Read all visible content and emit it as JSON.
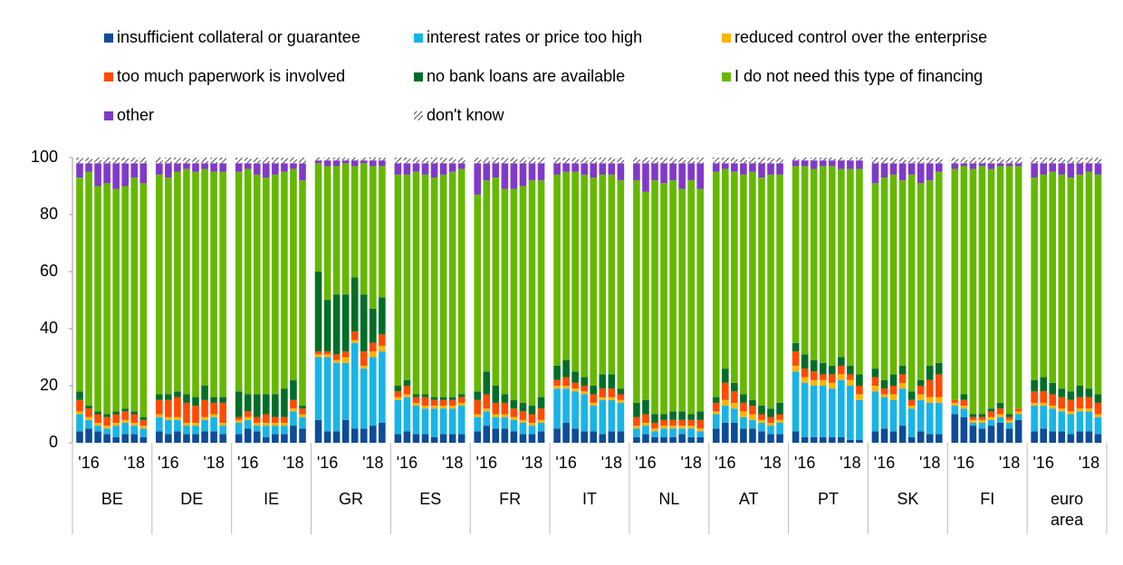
{
  "chart_data": {
    "type": "stacked_bar",
    "groups": [
      "BE",
      "DE",
      "IE",
      "GR",
      "ES",
      "FR",
      "IT",
      "NL",
      "AT",
      "PT",
      "SK",
      "FI",
      "euro area"
    ],
    "categories": [
      null,
      "'16",
      null,
      null,
      null,
      null,
      "'18",
      null,
      null,
      "'16",
      null,
      null,
      null,
      null,
      "'18",
      null,
      null,
      "'16",
      null,
      null,
      null,
      null,
      "'18",
      null,
      null,
      "'16",
      null,
      null,
      null,
      null,
      "'18",
      null,
      null,
      "'16",
      null,
      null,
      null,
      null,
      "'18",
      null,
      null,
      "'16",
      null,
      null,
      null,
      null,
      "'18",
      null,
      null,
      "'16",
      null,
      null,
      null,
      null,
      "'18",
      null,
      null,
      "'16",
      null,
      null,
      null,
      null,
      "'18",
      null,
      null,
      "'16",
      null,
      null,
      null,
      null,
      "'18",
      null,
      null,
      "'16",
      null,
      null,
      null,
      null,
      "'18",
      null,
      null,
      "'16",
      null,
      null,
      null,
      null,
      "'18",
      null,
      null,
      "'16",
      null,
      null,
      null,
      null,
      "'18",
      null,
      null,
      "'16",
      null,
      null,
      null,
      null,
      "'18",
      null
    ],
    "series": [
      {
        "name": "insufficient collateral or guarantee",
        "color": "#0e4c96",
        "values": [
          4,
          5,
          4,
          3,
          2,
          3,
          3,
          2,
          4,
          3,
          4,
          3,
          3,
          4,
          4,
          3,
          3,
          5,
          4,
          2,
          3,
          3,
          6,
          5,
          8,
          4,
          4,
          8,
          5,
          5,
          6,
          7,
          3,
          4,
          3,
          3,
          2,
          3,
          3,
          3,
          4,
          6,
          5,
          5,
          4,
          3,
          3,
          4,
          5,
          7,
          5,
          4,
          4,
          3,
          4,
          4,
          2,
          3,
          2,
          2,
          2,
          3,
          2,
          2,
          5,
          7,
          7,
          5,
          5,
          4,
          3,
          3,
          4,
          2,
          2,
          2,
          2,
          2,
          1,
          1,
          4,
          5,
          4,
          6,
          2,
          4,
          3,
          3,
          10,
          9,
          6,
          5,
          6,
          7,
          5,
          8,
          4,
          5,
          4,
          4,
          3,
          4,
          4,
          3
        ]
      },
      {
        "name": "interest rates or price too high",
        "color": "#19b4e6",
        "values": [
          6,
          3,
          2,
          2,
          4,
          4,
          3,
          3,
          5,
          5,
          4,
          3,
          3,
          4,
          5,
          3,
          4,
          3,
          2,
          4,
          3,
          3,
          5,
          4,
          22,
          26,
          24,
          20,
          30,
          21,
          24,
          25,
          12,
          12,
          10,
          9,
          10,
          9,
          9,
          10,
          5,
          5,
          4,
          4,
          4,
          4,
          3,
          3,
          14,
          12,
          13,
          13,
          9,
          12,
          11,
          10,
          3,
          3,
          2,
          3,
          3,
          2,
          3,
          2,
          5,
          6,
          5,
          4,
          3,
          3,
          3,
          4,
          21,
          19,
          18,
          18,
          17,
          20,
          19,
          14,
          14,
          11,
          11,
          13,
          10,
          11,
          11,
          11,
          3,
          3,
          1,
          2,
          2,
          2,
          2,
          2,
          9,
          8,
          8,
          7,
          7,
          7,
          7,
          6
        ]
      },
      {
        "name": "reduced control over the enterprise",
        "color": "#ffb400",
        "values": [
          1,
          1,
          1,
          1,
          1,
          1,
          1,
          1,
          1,
          1,
          1,
          1,
          1,
          1,
          1,
          1,
          1,
          1,
          1,
          1,
          1,
          1,
          1,
          1,
          1,
          1,
          1,
          2,
          1,
          1,
          2,
          2,
          1,
          1,
          1,
          1,
          1,
          1,
          1,
          1,
          1,
          1,
          1,
          1,
          1,
          1,
          1,
          1,
          1,
          1,
          1,
          1,
          1,
          1,
          1,
          1,
          1,
          1,
          1,
          1,
          1,
          1,
          1,
          1,
          1,
          2,
          2,
          2,
          2,
          1,
          1,
          1,
          2,
          2,
          2,
          2,
          2,
          2,
          2,
          2,
          2,
          1,
          2,
          2,
          1,
          2,
          2,
          2,
          1,
          1,
          1,
          1,
          1,
          1,
          1,
          1,
          1,
          1,
          1,
          1,
          1,
          1,
          1,
          1
        ]
      },
      {
        "name": "too much paperwork is involved",
        "color": "#ff4b00",
        "values": [
          4,
          3,
          3,
          3,
          3,
          3,
          3,
          2,
          5,
          6,
          7,
          7,
          6,
          6,
          4,
          7,
          1,
          2,
          2,
          3,
          2,
          2,
          3,
          2,
          1,
          1,
          2,
          2,
          3,
          5,
          3,
          4,
          2,
          3,
          2,
          3,
          2,
          2,
          2,
          2,
          5,
          5,
          4,
          4,
          3,
          3,
          3,
          4,
          2,
          3,
          2,
          2,
          3,
          3,
          3,
          2,
          3,
          3,
          2,
          2,
          2,
          2,
          2,
          3,
          3,
          6,
          4,
          3,
          3,
          2,
          2,
          2,
          5,
          3,
          3,
          2,
          3,
          3,
          2,
          3,
          3,
          2,
          3,
          3,
          2,
          3,
          6,
          8,
          1,
          2,
          1,
          1,
          2,
          2,
          1,
          1,
          4,
          4,
          4,
          4,
          4,
          4,
          4,
          4
        ]
      },
      {
        "name": "no bank loans are available",
        "color": "#006e28",
        "values": [
          3,
          1,
          1,
          1,
          1,
          1,
          1,
          1,
          2,
          2,
          2,
          3,
          3,
          5,
          2,
          2,
          9,
          6,
          8,
          7,
          8,
          10,
          7,
          1,
          28,
          18,
          21,
          20,
          19,
          20,
          12,
          13,
          2,
          2,
          1,
          1,
          1,
          1,
          1,
          1,
          3,
          8,
          6,
          3,
          3,
          3,
          3,
          4,
          5,
          6,
          4,
          3,
          3,
          5,
          5,
          2,
          5,
          5,
          3,
          2,
          3,
          3,
          2,
          3,
          2,
          5,
          3,
          3,
          2,
          3,
          3,
          4,
          3,
          5,
          4,
          4,
          3,
          3,
          3,
          4,
          3,
          3,
          4,
          3,
          3,
          2,
          5,
          4,
          0,
          2,
          1,
          1,
          1,
          2,
          1,
          0,
          4,
          5,
          4,
          3,
          3,
          4,
          3,
          3
        ]
      },
      {
        "name": "I do not need this type of financing",
        "color": "#65b800",
        "values": [
          75,
          82,
          79,
          81,
          78,
          78,
          82,
          82,
          77,
          76,
          77,
          79,
          79,
          76,
          79,
          79,
          77,
          79,
          77,
          76,
          77,
          76,
          74,
          79,
          38,
          47,
          45,
          46,
          39,
          46,
          50,
          46,
          74,
          72,
          78,
          77,
          77,
          78,
          79,
          79,
          69,
          67,
          73,
          72,
          74,
          76,
          79,
          76,
          67,
          66,
          70,
          71,
          73,
          70,
          70,
          73,
          78,
          73,
          82,
          81,
          81,
          78,
          82,
          78,
          79,
          70,
          74,
          77,
          80,
          80,
          82,
          80,
          62,
          66,
          67,
          69,
          70,
          66,
          69,
          72,
          65,
          71,
          70,
          65,
          76,
          69,
          65,
          67,
          81,
          80,
          86,
          87,
          84,
          83,
          87,
          85,
          71,
          71,
          74,
          75,
          75,
          74,
          76,
          77
        ]
      },
      {
        "name": "other",
        "color": "#8139c8",
        "values": [
          5,
          3,
          8,
          7,
          9,
          8,
          5,
          7,
          4,
          5,
          3,
          2,
          3,
          2,
          3,
          3,
          3,
          2,
          4,
          5,
          4,
          3,
          2,
          6,
          1,
          2,
          2,
          1,
          2,
          1,
          2,
          2,
          4,
          4,
          3,
          4,
          5,
          4,
          3,
          2,
          11,
          6,
          5,
          9,
          9,
          8,
          6,
          6,
          4,
          3,
          3,
          4,
          5,
          4,
          4,
          6,
          6,
          10,
          6,
          7,
          6,
          9,
          6,
          9,
          3,
          2,
          3,
          4,
          3,
          5,
          4,
          4,
          2,
          2,
          3,
          2,
          2,
          3,
          3,
          3,
          7,
          5,
          4,
          6,
          4,
          7,
          6,
          3,
          2,
          1,
          2,
          1,
          2,
          1,
          1,
          1,
          5,
          4,
          3,
          4,
          5,
          4,
          3,
          4
        ]
      },
      {
        "name": "don't know",
        "color": "#ffffff",
        "hatch": true,
        "values": [
          2,
          2,
          2,
          2,
          2,
          2,
          2,
          2,
          2,
          2,
          2,
          2,
          2,
          2,
          2,
          2,
          2,
          2,
          2,
          2,
          2,
          2,
          2,
          2,
          1,
          1,
          1,
          1,
          1,
          1,
          1,
          1,
          2,
          2,
          2,
          2,
          2,
          2,
          2,
          2,
          2,
          2,
          2,
          2,
          2,
          2,
          2,
          2,
          2,
          2,
          2,
          2,
          2,
          2,
          2,
          2,
          2,
          2,
          2,
          2,
          2,
          2,
          2,
          2,
          2,
          2,
          2,
          2,
          2,
          2,
          2,
          2,
          1,
          1,
          1,
          1,
          1,
          1,
          1,
          1,
          2,
          2,
          2,
          2,
          2,
          2,
          2,
          2,
          2,
          2,
          2,
          2,
          2,
          2,
          2,
          2,
          2,
          2,
          2,
          2,
          2,
          2,
          2,
          2
        ]
      }
    ],
    "ylim": [
      0,
      100
    ],
    "yticks": [
      0,
      20,
      40,
      60,
      80,
      100
    ],
    "grid": false
  }
}
